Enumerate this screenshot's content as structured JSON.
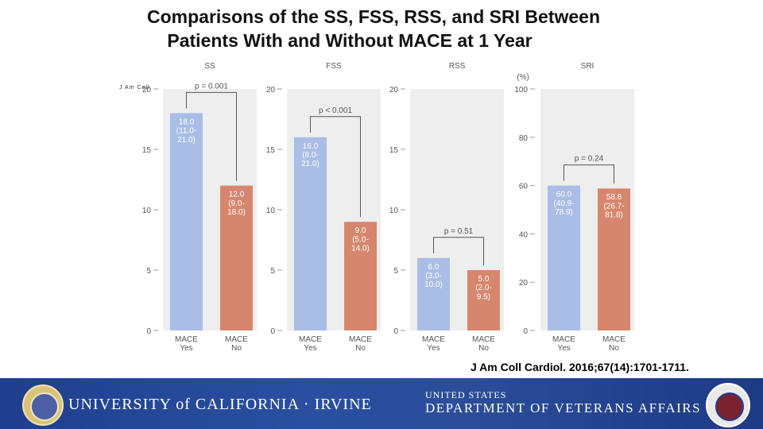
{
  "title": {
    "line1": "Comparisons of the SS, FSS, RSS, and SRI Between",
    "line2": "Patients With and Without MACE at 1 Year"
  },
  "small_citation": "J Am Coll",
  "citation": "J Am Coll Cardiol. 2016;67(14):1701-1711.",
  "footer": {
    "uci_text": "UNIVERSITY of CALIFORNIA · IRVINE",
    "va_line1": "UNITED STATES",
    "va_line2": "DEPARTMENT OF VETERANS AFFAIRS"
  },
  "colors": {
    "mace_yes": "#a9bde6",
    "mace_no": "#d7866e",
    "panel": "#eeeeee",
    "axis_text": "#555555"
  },
  "chart_data": [
    {
      "type": "bar",
      "title": "SS",
      "ylim": [
        0,
        20
      ],
      "yticks": [
        0,
        5,
        10,
        15,
        20
      ],
      "unit": "",
      "categories": [
        "MACE\nYes",
        "MACE\nNo"
      ],
      "values": [
        18.0,
        12.0
      ],
      "labels": [
        "18.0\n(11.0-\n21.0)",
        "12.0\n(9.0-\n18.0)"
      ],
      "p_value": "p = 0.001",
      "grid": false
    },
    {
      "type": "bar",
      "title": "FSS",
      "ylim": [
        0,
        20
      ],
      "yticks": [
        0,
        5,
        10,
        15,
        20
      ],
      "unit": "",
      "categories": [
        "MACE\nYes",
        "MACE\nNo"
      ],
      "values": [
        16.0,
        9.0
      ],
      "labels": [
        "16.0\n(8.0-\n21.0)",
        "9.0\n(5.0-\n14.0)"
      ],
      "p_value": "p < 0.001",
      "grid": false
    },
    {
      "type": "bar",
      "title": "RSS",
      "ylim": [
        0,
        20
      ],
      "yticks": [
        0,
        5,
        10,
        15,
        20
      ],
      "unit": "",
      "categories": [
        "MACE\nYes",
        "MACE\nNo"
      ],
      "values": [
        6.0,
        5.0
      ],
      "labels": [
        "6.0\n(3.0-\n10.0)",
        "5.0\n(2.0-\n9.5)"
      ],
      "p_value": "p = 0.51",
      "grid": false
    },
    {
      "type": "bar",
      "title": "SRI",
      "ylim": [
        0,
        100
      ],
      "yticks": [
        0,
        20,
        40,
        60,
        80,
        100
      ],
      "unit": "(%)",
      "categories": [
        "MACE\nYes",
        "MACE\nNo"
      ],
      "values": [
        60.0,
        58.8
      ],
      "labels": [
        "60.0\n(40.9-\n78.9)",
        "58.8\n(26.7-\n81.8)"
      ],
      "p_value": "p = 0.24",
      "grid": false
    }
  ]
}
